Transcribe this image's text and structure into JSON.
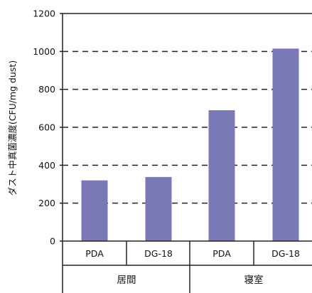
{
  "chart_data": {
    "type": "bar",
    "title": "",
    "xlabel": "",
    "ylabel": "ダスト中真菌濃度(CFU/mg dust)",
    "ylim": [
      0,
      1200
    ],
    "yticks": [
      0,
      200,
      400,
      600,
      800,
      1000,
      1200
    ],
    "grid": "dashed horizontal",
    "categories": [
      "PDA",
      "DG-18",
      "PDA",
      "DG-18"
    ],
    "groups": [
      {
        "label": "居間",
        "categories": [
          "PDA",
          "DG-18"
        ]
      },
      {
        "label": "寝室",
        "categories": [
          "PDA",
          "DG-18"
        ]
      }
    ],
    "values": [
      320,
      338,
      690,
      1015
    ],
    "bar_color": "#7b78b7"
  }
}
